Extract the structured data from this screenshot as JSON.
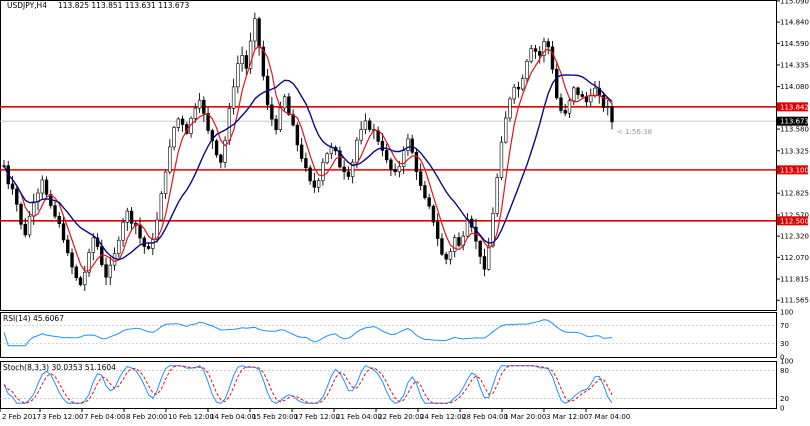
{
  "header": {
    "symbol": "USDJPY,H4",
    "ohlc": "113.825 113.851 113.631 113.673"
  },
  "rsi_panel": {
    "label": "RSI(14) 45.6067",
    "levels": [
      "100",
      "70",
      "30",
      "0"
    ]
  },
  "stoch_panel": {
    "label": "Stoch(8,3,3) 30.0353 51.1604",
    "levels": [
      "100",
      "80",
      "20",
      "0"
    ]
  },
  "countdown": "< 1:56:38",
  "colors": {
    "bull": "#ffffff",
    "bear": "#000000",
    "ma_fast": "#e0141e",
    "ma_slow": "#0a0a80",
    "hline": "#e00000",
    "rsi": "#1e90ff",
    "stoch_main": "#1e90ff",
    "stoch_signal": "#e0141e",
    "last_price_bg": "#000000"
  },
  "chart_data": {
    "type": "candlestick",
    "title": "USDJPY,H4",
    "ylim": [
      111.45,
      115.1
    ],
    "y_ticks": [
      "115.090",
      "114.840",
      "114.590",
      "114.335",
      "114.080",
      "113.580",
      "113.325",
      "112.825",
      "112.570",
      "112.320",
      "112.070",
      "111.815",
      "111.565"
    ],
    "x_ticks": [
      "2 Feb 2017",
      "3 Feb 12:00",
      "7 Feb 04:00",
      "8 Feb 20:00",
      "10 Feb 12:00",
      "14 Feb 04:00",
      "15 Feb 20:00",
      "17 Feb 12:00",
      "21 Feb 04:00",
      "22 Feb 20:00",
      "24 Feb 12:00",
      "28 Feb 04:00",
      "1 Mar 20:00",
      "3 Mar 12:00",
      "7 Mar 04:00"
    ],
    "horizontal_lines": [
      {
        "label": "113.842",
        "value": 113.842
      },
      {
        "label": "113.100",
        "value": 113.1
      },
      {
        "label": "112.500",
        "value": 112.5
      }
    ],
    "last_price": {
      "label": "113.673",
      "value": 113.673
    },
    "price_path": [
      113.15,
      112.95,
      112.9,
      112.7,
      112.45,
      112.35,
      112.55,
      112.75,
      112.85,
      113.0,
      112.8,
      112.65,
      112.55,
      112.45,
      112.3,
      112.1,
      111.95,
      111.82,
      111.75,
      111.9,
      112.1,
      112.3,
      112.2,
      112.0,
      111.85,
      111.95,
      112.1,
      112.3,
      112.5,
      112.6,
      112.5,
      112.45,
      112.3,
      112.2,
      112.15,
      112.3,
      112.5,
      112.8,
      113.1,
      113.35,
      113.6,
      113.7,
      113.65,
      113.55,
      113.7,
      113.85,
      113.95,
      113.75,
      113.55,
      113.45,
      113.3,
      113.2,
      113.45,
      113.8,
      114.1,
      114.35,
      114.45,
      114.3,
      114.6,
      114.85,
      114.55,
      114.2,
      113.85,
      113.7,
      113.6,
      113.8,
      113.95,
      113.75,
      113.6,
      113.4,
      113.25,
      113.1,
      112.95,
      112.9,
      113.0,
      113.2,
      113.3,
      113.35,
      113.3,
      113.15,
      113.1,
      113.05,
      113.2,
      113.45,
      113.55,
      113.65,
      113.6,
      113.55,
      113.45,
      113.35,
      113.2,
      113.1,
      113.05,
      113.15,
      113.35,
      113.45,
      113.3,
      113.1,
      112.9,
      112.75,
      112.65,
      112.5,
      112.3,
      112.1,
      112.05,
      112.15,
      112.3,
      112.2,
      112.35,
      112.55,
      112.45,
      112.25,
      112.1,
      111.9,
      112.2,
      112.6,
      113.0,
      113.4,
      113.7,
      113.95,
      114.1,
      114.05,
      114.2,
      114.4,
      114.55,
      114.5,
      114.45,
      114.6,
      114.55,
      114.3,
      113.95,
      113.8,
      113.75,
      113.9,
      114.05,
      114.0,
      113.95,
      113.9,
      114.0,
      114.05,
      113.95,
      113.85,
      113.82,
      113.67
    ]
  }
}
